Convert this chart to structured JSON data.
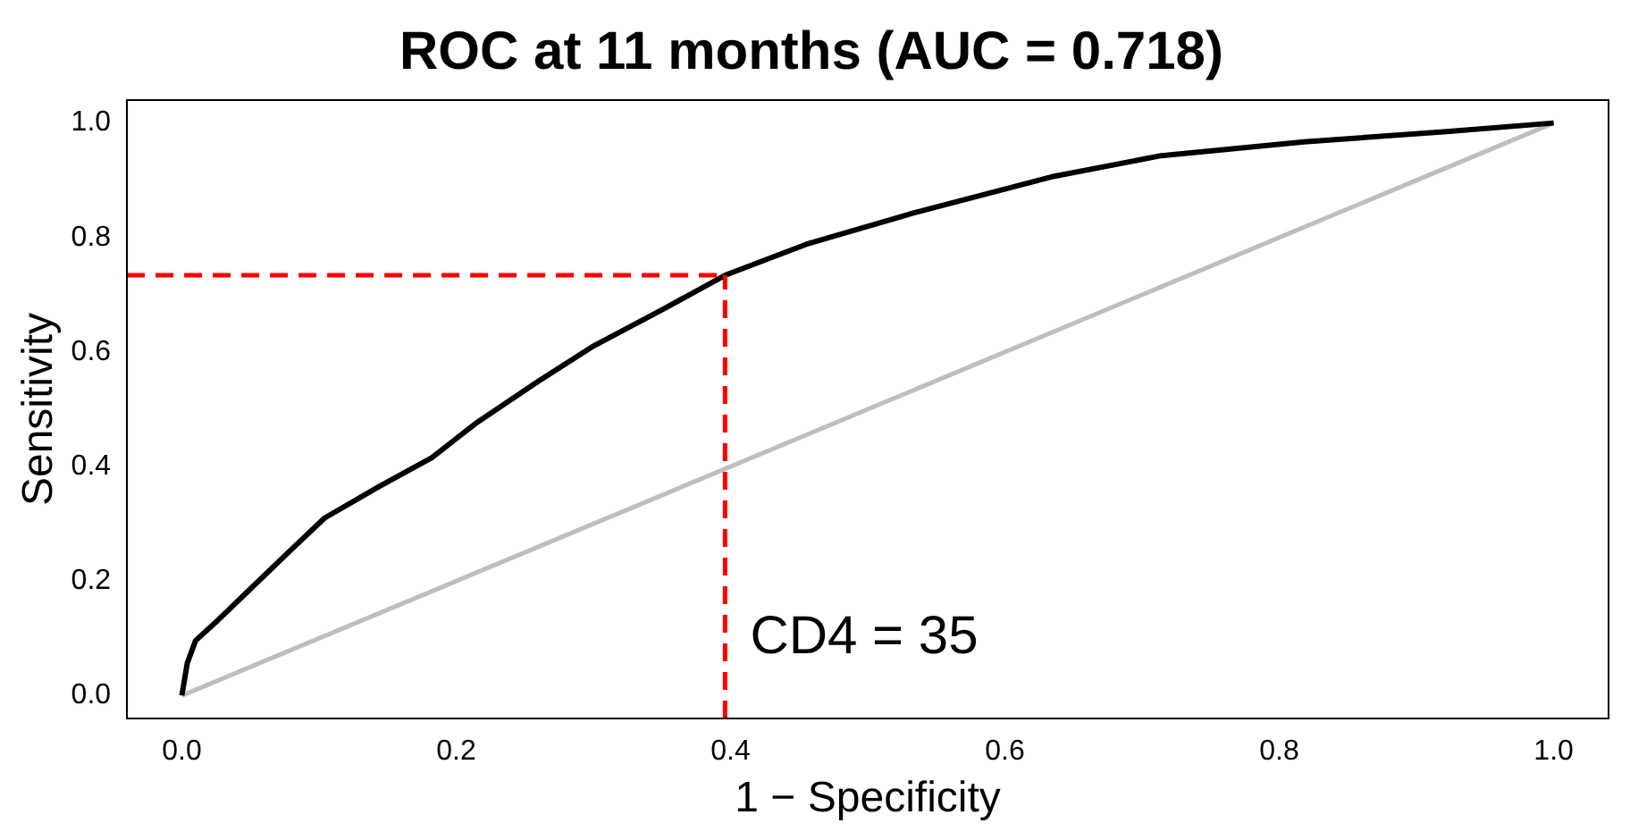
{
  "chart_data": {
    "type": "line",
    "title": "ROC at 11 months (AUC = 0.718)",
    "xlabel": "1 − Specificity",
    "ylabel": "Sensitivity",
    "series": [
      {
        "color": "#000000",
        "x": [
          0,
          0.004,
          0.01,
          0.026,
          0.052,
          0.078,
          0.104,
          0.143,
          0.182,
          0.214,
          0.26,
          0.299,
          0.351,
          0.396,
          0.455,
          0.532,
          0.636,
          0.714,
          0.818,
          0.922,
          1
        ],
        "values": [
          0,
          0.057,
          0.096,
          0.131,
          0.191,
          0.251,
          0.31,
          0.364,
          0.415,
          0.475,
          0.549,
          0.609,
          0.675,
          0.734,
          0.788,
          0.842,
          0.907,
          0.943,
          0.967,
          0.985,
          1
        ]
      },
      {
        "color": "#bebebe",
        "x": [
          0,
          1
        ],
        "values": [
          0,
          1
        ]
      }
    ],
    "ref_lines": [
      {
        "axis": "x",
        "value": 0.396,
        "label": null,
        "color": "#ff0000",
        "line_style": "dashed"
      },
      {
        "axis": "y",
        "value": 0.734,
        "label": null,
        "color": "#ff0000",
        "line_style": "dashed"
      }
    ],
    "annotations": [
      "CD4 = 35"
    ],
    "xlim": [
      -0.04,
      1.04
    ],
    "ylim": [
      -0.04,
      1.04
    ],
    "xticks": [
      {
        "value": 0,
        "label": "0.0"
      },
      0.2,
      0.4,
      0.6,
      0.8,
      {
        "value": 1,
        "label": "1.0"
      }
    ],
    "yticks": [
      {
        "value": 0,
        "label": "0.0"
      },
      0.2,
      0.4,
      0.6,
      0.8,
      {
        "value": 1,
        "label": "1.0"
      }
    ],
    "grid": false,
    "legend": false,
    "marker": "none",
    "line_style": "solid"
  }
}
